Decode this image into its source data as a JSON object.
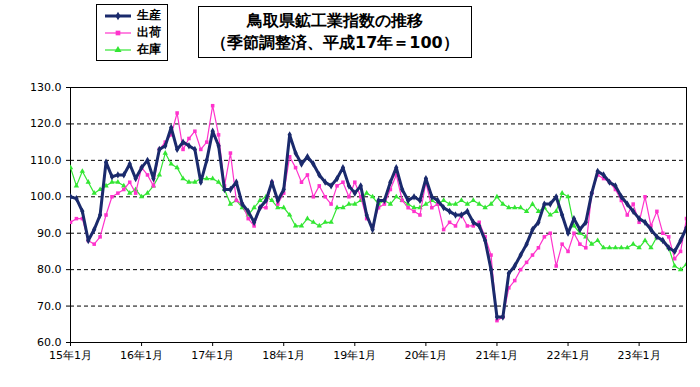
{
  "chart_data": {
    "type": "line",
    "title": "鳥取県鉱工業指数の推移",
    "subtitle": "（季節調整済、平成17年＝100）",
    "categories": [
      "15年1月",
      null,
      null,
      null,
      null,
      null,
      null,
      null,
      null,
      null,
      null,
      null,
      "16年1月",
      null,
      null,
      null,
      null,
      null,
      null,
      null,
      null,
      null,
      null,
      null,
      "17年1月",
      null,
      null,
      null,
      null,
      null,
      null,
      null,
      null,
      null,
      null,
      null,
      "18年1月",
      null,
      null,
      null,
      null,
      null,
      null,
      null,
      null,
      null,
      null,
      null,
      "19年1月",
      null,
      null,
      null,
      null,
      null,
      null,
      null,
      null,
      null,
      null,
      null,
      "20年1月",
      null,
      null,
      null,
      null,
      null,
      null,
      null,
      null,
      null,
      null,
      null,
      "21年1月",
      null,
      null,
      null,
      null,
      null,
      null,
      null,
      null,
      null,
      null,
      null,
      "22年1月",
      null,
      null,
      null,
      null,
      null,
      null,
      null,
      null,
      null,
      null,
      null,
      "23年1月",
      null,
      null,
      null,
      null,
      null,
      null,
      null,
      null
    ],
    "series": [
      {
        "name": "生産",
        "color": "#1a2a6c",
        "marker": "diamond",
        "values": [
          100,
          99.5,
          96,
          88,
          91,
          95,
          109.5,
          105.5,
          106,
          106,
          109,
          105,
          108,
          110,
          105,
          113,
          114,
          119,
          113,
          115,
          114,
          113,
          104,
          110,
          118,
          114,
          102,
          102,
          104,
          98,
          96,
          93,
          97,
          99,
          104,
          99,
          102,
          117,
          112,
          109,
          111,
          109,
          106,
          104,
          103,
          105,
          108,
          103,
          101,
          103,
          95,
          91,
          99,
          99,
          104,
          108,
          102,
          99,
          100,
          99,
          105,
          100,
          99,
          97,
          96,
          95,
          95,
          96,
          93,
          92,
          88,
          80,
          67,
          67,
          79,
          81,
          84,
          87,
          91,
          93,
          98,
          98,
          100,
          95,
          90,
          94,
          91,
          93,
          101,
          107,
          106,
          104,
          103,
          100,
          98,
          96,
          94,
          93,
          91,
          89,
          88,
          86,
          85,
          88,
          91.5
        ]
      },
      {
        "name": "出荷",
        "color": "#ff33cc",
        "marker": "square",
        "values": [
          93,
          94,
          94,
          88,
          87,
          89,
          95,
          100,
          101,
          102,
          104,
          101,
          108,
          106,
          103,
          113,
          115,
          117,
          123,
          113,
          116,
          118,
          113,
          115,
          125,
          117,
          103,
          112,
          99,
          98,
          94,
          92,
          97,
          97,
          104,
          98,
          101,
          111,
          108,
          104,
          106,
          100,
          103,
          100,
          98,
          103,
          104,
          100,
          104,
          100,
          94,
          92,
          97,
          98,
          102,
          106,
          99,
          97,
          96,
          95,
          104,
          97,
          98,
          91,
          93,
          92,
          95,
          92,
          92,
          93,
          89,
          84,
          66,
          67,
          75,
          77,
          80,
          82,
          84,
          86,
          89,
          90,
          81,
          87,
          85,
          90,
          87,
          86,
          101,
          106,
          105,
          104,
          102,
          99,
          95,
          98,
          93,
          100,
          92,
          96,
          90,
          89,
          83,
          85,
          94
        ]
      },
      {
        "name": "在庫",
        "color": "#33e633",
        "marker": "triangle",
        "values": [
          108,
          103,
          107,
          104,
          101,
          102,
          103,
          104,
          104,
          103,
          101,
          102,
          100,
          101,
          103,
          106,
          112,
          109,
          108,
          105,
          104,
          104,
          105,
          105,
          105,
          104,
          102,
          98,
          99,
          97,
          95,
          97,
          99,
          100,
          99,
          97,
          97,
          95,
          92,
          92,
          94,
          93,
          92,
          93,
          93,
          97,
          97,
          98,
          98,
          99,
          101,
          100,
          98,
          99,
          98,
          100,
          99,
          98,
          97,
          97,
          98,
          99,
          98,
          99,
          98,
          98,
          99,
          98,
          99,
          98,
          97,
          98,
          100,
          98,
          97,
          97,
          97,
          96,
          98,
          96,
          97,
          95,
          96,
          101,
          100,
          92,
          90,
          89,
          87,
          88,
          86,
          86,
          86,
          86,
          86,
          87,
          86,
          88,
          86,
          89,
          88,
          86,
          81,
          80,
          81.5
        ]
      }
    ],
    "ylim": [
      60,
      130
    ],
    "yticks": [
      {
        "value": 60,
        "label": "60.0"
      },
      {
        "value": 70,
        "label": "70.0"
      },
      {
        "value": 80,
        "label": "80.0"
      },
      {
        "value": 90,
        "label": "90.0"
      },
      {
        "value": 100,
        "label": "100.0"
      },
      {
        "value": 110,
        "label": "110.0"
      },
      {
        "value": 120,
        "label": "120.0"
      },
      {
        "value": 130,
        "label": "130.0"
      }
    ],
    "grid": true,
    "legend": "top-left"
  }
}
